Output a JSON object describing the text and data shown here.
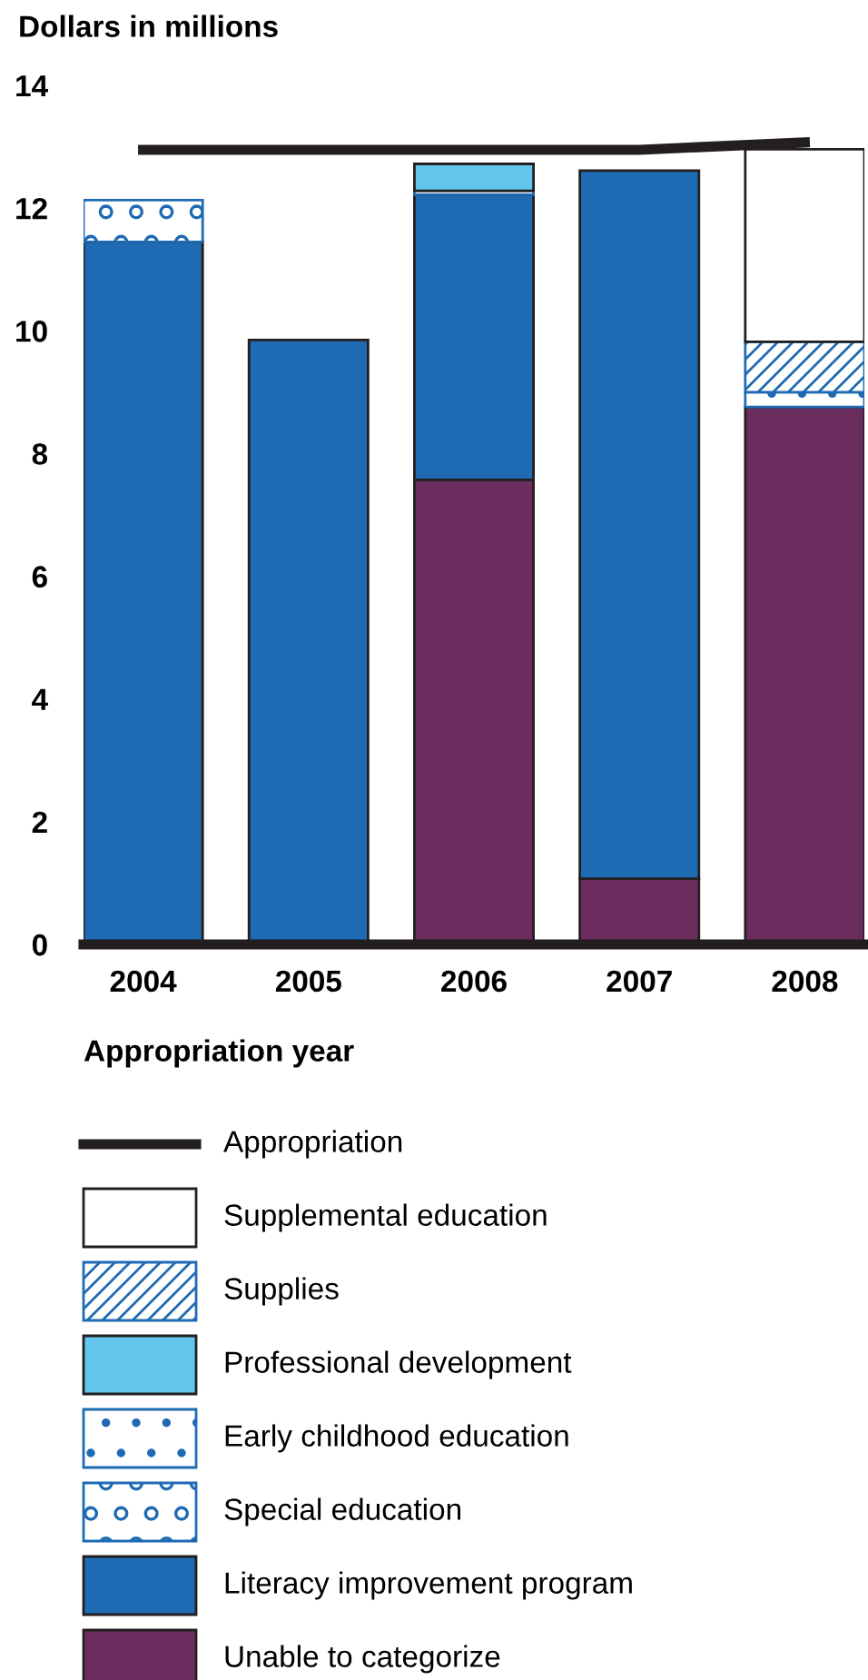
{
  "chart_data": {
    "type": "bar",
    "stacked": true,
    "ylabel": "Dollars in millions",
    "xlabel": "Appropriation year",
    "categories": [
      "2004",
      "2005",
      "2006",
      "2007",
      "2008"
    ],
    "ylim": [
      0,
      14
    ],
    "yticks": [
      0,
      2,
      4,
      6,
      8,
      10,
      12,
      14
    ],
    "grid": false,
    "legend": "bottom",
    "series": [
      {
        "name": "Unable to categorize",
        "color": "#6b2c5e",
        "values": [
          null,
          null,
          7.57,
          1.07,
          8.76
        ]
      },
      {
        "name": "Literacy improvement program",
        "color": "#1f6bb3",
        "values": [
          11.45,
          9.85,
          4.65,
          11.54,
          null
        ]
      },
      {
        "name": "Special education",
        "color": "#1f6bb3",
        "values": [
          0.68,
          null,
          null,
          null,
          null
        ]
      },
      {
        "name": "Early childhood education",
        "color": "#1f6bb3",
        "values": [
          null,
          null,
          0.06,
          null,
          0.24
        ]
      },
      {
        "name": "Professional development",
        "color": "#63c6ed",
        "values": [
          null,
          null,
          0.44,
          null,
          null
        ]
      },
      {
        "name": "Supplies",
        "color": "#1f6bb3",
        "values": [
          null,
          null,
          null,
          null,
          0.82
        ]
      },
      {
        "name": "Supplemental education",
        "color": "#ffffff",
        "values": [
          null,
          null,
          null,
          null,
          3.14
        ]
      },
      {
        "name": "Appropriation",
        "type": "line",
        "color": "#231f20",
        "values": [
          12.95,
          12.95,
          12.95,
          12.95,
          13.07
        ]
      }
    ]
  }
}
